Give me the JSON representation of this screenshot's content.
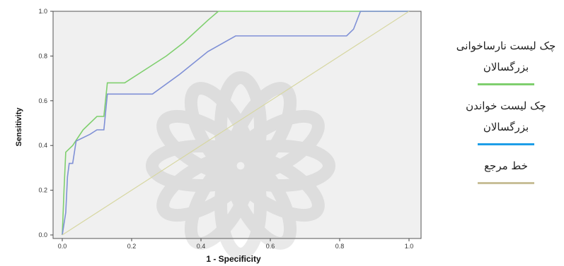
{
  "chart_data": {
    "type": "line",
    "title": "",
    "xlabel": "1 - Specificity",
    "ylabel": "Sensitivity",
    "xlim": [
      0,
      1
    ],
    "ylim": [
      0,
      1
    ],
    "x_ticks": [
      "0.0",
      "0.2",
      "0.4",
      "0.6",
      "0.8",
      "1.0"
    ],
    "y_ticks": [
      "0.0",
      "0.2",
      "0.4",
      "0.6",
      "0.8",
      "1.0"
    ],
    "grid": false,
    "legend_position": "right",
    "series": [
      {
        "name": "چک لیست نارساخوانی بزرگسالان",
        "color": "#7fcf6e",
        "points": [
          [
            0,
            0
          ],
          [
            0.005,
            0.2
          ],
          [
            0.01,
            0.37
          ],
          [
            0.03,
            0.4
          ],
          [
            0.06,
            0.47
          ],
          [
            0.08,
            0.5
          ],
          [
            0.1,
            0.53
          ],
          [
            0.12,
            0.53
          ],
          [
            0.13,
            0.68
          ],
          [
            0.18,
            0.68
          ],
          [
            0.25,
            0.75
          ],
          [
            0.3,
            0.8
          ],
          [
            0.35,
            0.86
          ],
          [
            0.42,
            0.96
          ],
          [
            0.45,
            1.0
          ],
          [
            1,
            1
          ]
        ]
      },
      {
        "name": "چک لیست خواندن بزرگسالان",
        "color": "#7f90d6",
        "points": [
          [
            0,
            0
          ],
          [
            0.01,
            0.1
          ],
          [
            0.015,
            0.26
          ],
          [
            0.02,
            0.32
          ],
          [
            0.03,
            0.32
          ],
          [
            0.04,
            0.42
          ],
          [
            0.08,
            0.45
          ],
          [
            0.1,
            0.47
          ],
          [
            0.12,
            0.47
          ],
          [
            0.13,
            0.63
          ],
          [
            0.26,
            0.63
          ],
          [
            0.34,
            0.72
          ],
          [
            0.42,
            0.82
          ],
          [
            0.5,
            0.89
          ],
          [
            0.82,
            0.89
          ],
          [
            0.84,
            0.92
          ],
          [
            0.86,
            1.0
          ],
          [
            1,
            1
          ]
        ]
      },
      {
        "name": "خط مرجع",
        "color": "#d7d7a2",
        "points": [
          [
            0,
            0
          ],
          [
            1,
            1
          ]
        ]
      }
    ]
  },
  "legend": [
    {
      "label": "چک لیست نارساخوانی بزرگسالان",
      "color": "#7fcf6e"
    },
    {
      "label": "چک لیست خواندن بزرگسالان",
      "color": "#1e9ee8"
    },
    {
      "label": "خط مرجع",
      "color": "#c8bf98"
    }
  ]
}
